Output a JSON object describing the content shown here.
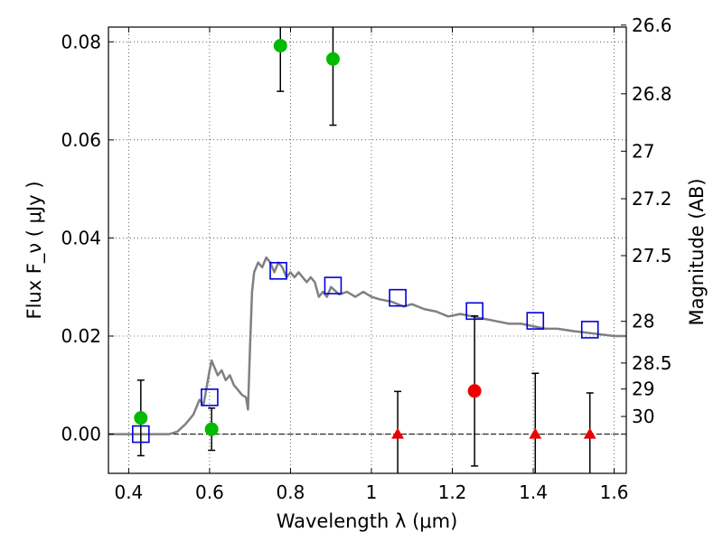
{
  "chart_data": {
    "type": "scatter",
    "xlabel": "Wavelength λ (μm)",
    "ylabel": "Flux F_ν ( μJy )",
    "ylabel_right": "Magnitude (AB)",
    "xlim": [
      0.35,
      1.63
    ],
    "ylim": [
      -0.008,
      0.083
    ],
    "grid": true,
    "xticks": [
      0.4,
      0.6,
      0.8,
      1.0,
      1.2,
      1.4,
      1.6
    ],
    "xtick_labels": [
      "0.4",
      "0.6",
      "0.8",
      "1",
      "1.2",
      "1.4",
      "1.6"
    ],
    "yticks": [
      0.0,
      0.02,
      0.04,
      0.06,
      0.08
    ],
    "ytick_labels": [
      "0.00",
      "0.02",
      "0.04",
      "0.06",
      "0.08"
    ],
    "mag_ticks": [
      {
        "label": "26.6",
        "flux": 0.0834
      },
      {
        "label": "26.8",
        "flux": 0.0694
      },
      {
        "label": "27",
        "flux": 0.0577
      },
      {
        "label": "27.2",
        "flux": 0.048
      },
      {
        "label": "27.5",
        "flux": 0.0364
      },
      {
        "label": "28",
        "flux": 0.023
      },
      {
        "label": "28.5",
        "flux": 0.0145
      },
      {
        "label": "29",
        "flux": 0.0092
      },
      {
        "label": "30",
        "flux": 0.0036
      }
    ],
    "colors": {
      "detections": "#00bb00",
      "red_detection": "#ee0000",
      "upper_limits": "#ee0000",
      "model_squares": "#0000dd",
      "sed": "#808080",
      "errorbar": "#000000"
    },
    "series": [
      {
        "kind": "sed_model",
        "x": [
          0.35,
          0.43,
          0.5,
          0.52,
          0.54,
          0.56,
          0.575,
          0.585,
          0.6,
          0.605,
          0.61,
          0.62,
          0.63,
          0.64,
          0.65,
          0.66,
          0.67,
          0.68,
          0.69,
          0.695,
          0.7,
          0.705,
          0.71,
          0.72,
          0.73,
          0.74,
          0.75,
          0.76,
          0.77,
          0.78,
          0.79,
          0.8,
          0.81,
          0.82,
          0.83,
          0.84,
          0.85,
          0.86,
          0.87,
          0.88,
          0.89,
          0.9,
          0.92,
          0.94,
          0.96,
          0.98,
          1.0,
          1.02,
          1.05,
          1.08,
          1.1,
          1.13,
          1.16,
          1.19,
          1.22,
          1.25,
          1.28,
          1.31,
          1.34,
          1.37,
          1.4,
          1.43,
          1.46,
          1.5,
          1.55,
          1.6,
          1.63
        ],
        "y": [
          0.0,
          0.0,
          0.0,
          0.0005,
          0.002,
          0.004,
          0.007,
          0.006,
          0.013,
          0.015,
          0.014,
          0.012,
          0.013,
          0.011,
          0.012,
          0.01,
          0.009,
          0.008,
          0.0075,
          0.005,
          0.018,
          0.029,
          0.033,
          0.035,
          0.034,
          0.036,
          0.035,
          0.033,
          0.035,
          0.034,
          0.032,
          0.033,
          0.032,
          0.033,
          0.032,
          0.031,
          0.032,
          0.031,
          0.028,
          0.029,
          0.028,
          0.03,
          0.0285,
          0.029,
          0.028,
          0.029,
          0.028,
          0.0275,
          0.027,
          0.026,
          0.0265,
          0.0255,
          0.025,
          0.024,
          0.0245,
          0.024,
          0.0235,
          0.023,
          0.0225,
          0.0225,
          0.022,
          0.0215,
          0.0215,
          0.021,
          0.0205,
          0.02,
          0.02
        ]
      },
      {
        "kind": "model_squares",
        "x": [
          0.43,
          0.6,
          0.77,
          0.905,
          1.065,
          1.255,
          1.405,
          1.54
        ],
        "y": [
          0.0,
          0.0075,
          0.0333,
          0.0303,
          0.0278,
          0.0251,
          0.0231,
          0.0213
        ]
      },
      {
        "kind": "detections",
        "x": [
          0.43,
          0.605,
          0.775,
          0.905
        ],
        "y": [
          0.0033,
          0.001,
          0.0792,
          0.0765
        ],
        "err": [
          0.0077,
          0.0043,
          0.0093,
          0.0135
        ]
      },
      {
        "kind": "red_detection",
        "x": [
          1.255
        ],
        "y": [
          0.0088
        ],
        "err": [
          0.0153
        ]
      },
      {
        "kind": "upper_limits",
        "x": [
          1.065,
          1.405,
          1.54
        ],
        "y": [
          0.0,
          0.0,
          0.0
        ],
        "err": [
          0.0087,
          0.0124,
          0.0084
        ]
      }
    ]
  }
}
